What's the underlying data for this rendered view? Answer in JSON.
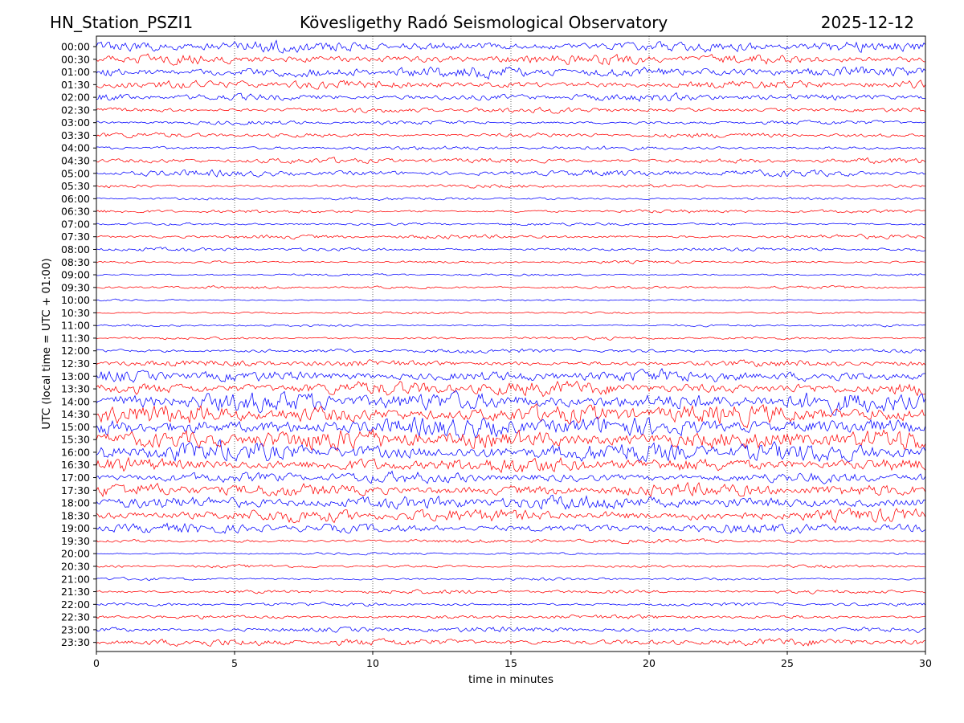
{
  "header": {
    "station": "HN_Station_PSZI1",
    "observatory": "Kövesligethy Radó Seismological Observatory",
    "date": "2025-12-12"
  },
  "chart_data": {
    "type": "line",
    "title": "Kövesligethy Radó Seismological Observatory",
    "xlabel": "time in minutes",
    "ylabel": "UTC (local time = UTC + 01:00)",
    "xlim": [
      0,
      30
    ],
    "xticks": [
      "0",
      "5",
      "10",
      "15",
      "20",
      "25",
      "30"
    ],
    "grid": "vertical dotted lines at 5-minute intervals",
    "trace_colors": [
      "#0000ff",
      "#ff0000"
    ],
    "rows": [
      "00:00",
      "00:30",
      "01:00",
      "01:30",
      "02:00",
      "02:30",
      "03:00",
      "03:30",
      "04:00",
      "04:30",
      "05:00",
      "05:30",
      "06:00",
      "06:30",
      "07:00",
      "07:30",
      "08:00",
      "08:30",
      "09:00",
      "09:30",
      "10:00",
      "10:30",
      "11:00",
      "11:30",
      "12:00",
      "12:30",
      "13:00",
      "13:30",
      "14:00",
      "14:30",
      "15:00",
      "15:30",
      "16:00",
      "16:30",
      "17:00",
      "17:30",
      "18:00",
      "18:30",
      "19:00",
      "19:30",
      "20:00",
      "20:30",
      "21:00",
      "21:30",
      "22:00",
      "22:30",
      "23:00",
      "23:30"
    ],
    "relative_amplitude": [
      0.9,
      0.85,
      0.95,
      0.7,
      0.6,
      0.45,
      0.35,
      0.4,
      0.35,
      0.45,
      0.55,
      0.3,
      0.25,
      0.3,
      0.25,
      0.35,
      0.3,
      0.25,
      0.2,
      0.25,
      0.15,
      0.2,
      0.2,
      0.25,
      0.35,
      0.55,
      1.0,
      1.2,
      1.6,
      1.6,
      1.7,
      1.7,
      1.6,
      1.3,
      0.9,
      1.1,
      1.2,
      1.1,
      0.8,
      0.35,
      0.2,
      0.25,
      0.25,
      0.35,
      0.3,
      0.35,
      0.45,
      0.6
    ]
  }
}
